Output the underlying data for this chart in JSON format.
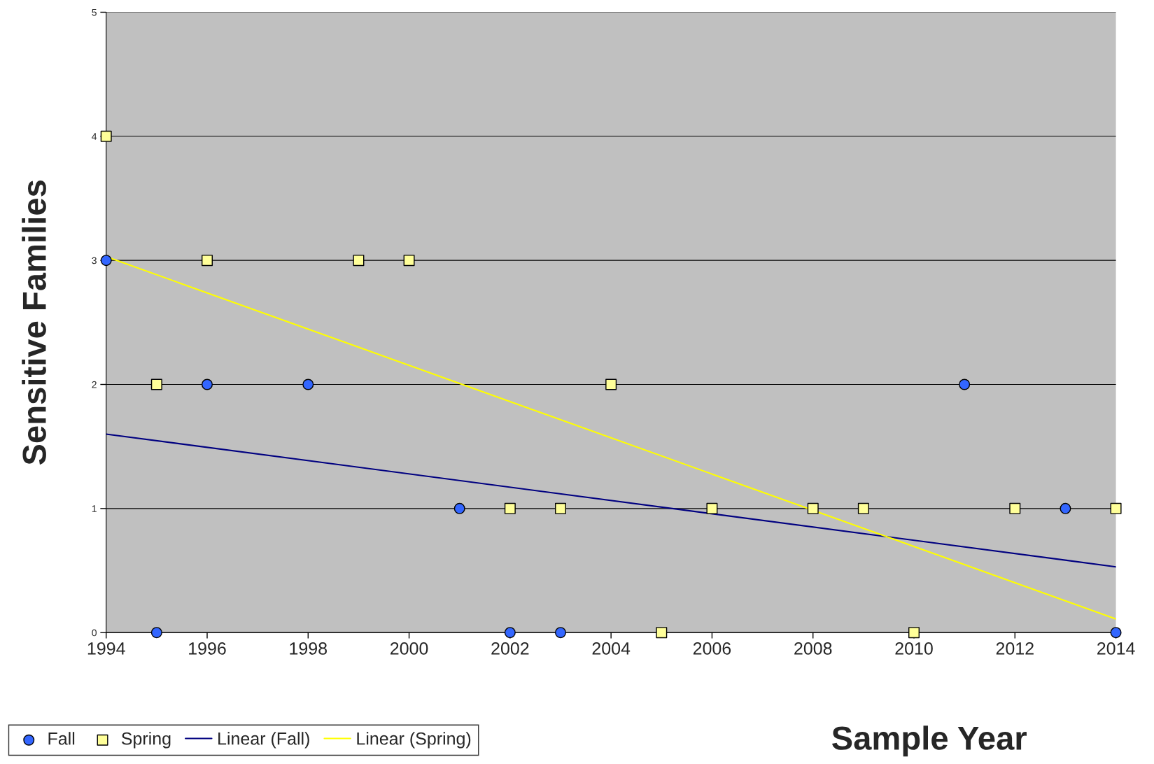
{
  "chart_data": {
    "type": "scatter",
    "xlabel": "Sample Year",
    "ylabel": "Sensitive Families",
    "xlim": [
      1994,
      2014
    ],
    "xticks": [
      1994,
      1996,
      1998,
      2000,
      2002,
      2004,
      2006,
      2008,
      2010,
      2012,
      2014
    ],
    "ylim": [
      0,
      5
    ],
    "yticks": [
      0,
      1,
      2,
      3,
      4,
      5
    ],
    "grid": "y",
    "legend": "bottom left",
    "series": [
      {
        "name": "Fall",
        "marker": "circle",
        "color": "#3366ff",
        "x": [
          1994,
          1995,
          1996,
          1998,
          2001,
          2002,
          2003,
          2011,
          2013,
          2014
        ],
        "values": [
          3,
          0,
          2,
          2,
          1,
          0,
          0,
          2,
          1,
          0
        ]
      },
      {
        "name": "Spring",
        "marker": "square",
        "color": "#ffff99",
        "x": [
          1994,
          1995,
          1996,
          1999,
          2000,
          2002,
          2003,
          2004,
          2005,
          2006,
          2008,
          2009,
          2010,
          2012,
          2014
        ],
        "values": [
          4,
          2,
          3,
          3,
          3,
          1,
          1,
          2,
          0,
          1,
          1,
          1,
          0,
          1,
          1
        ]
      },
      {
        "name": "Linear (Fall)",
        "type": "line",
        "marker": "none",
        "color": "#000080",
        "x": [
          1994,
          2014
        ],
        "values": [
          1.6,
          0.53
        ]
      },
      {
        "name": "Linear (Spring)",
        "type": "line",
        "marker": "none",
        "color": "#ffff00",
        "x": [
          1994,
          2014
        ],
        "values": [
          3.03,
          0.11
        ]
      }
    ]
  }
}
